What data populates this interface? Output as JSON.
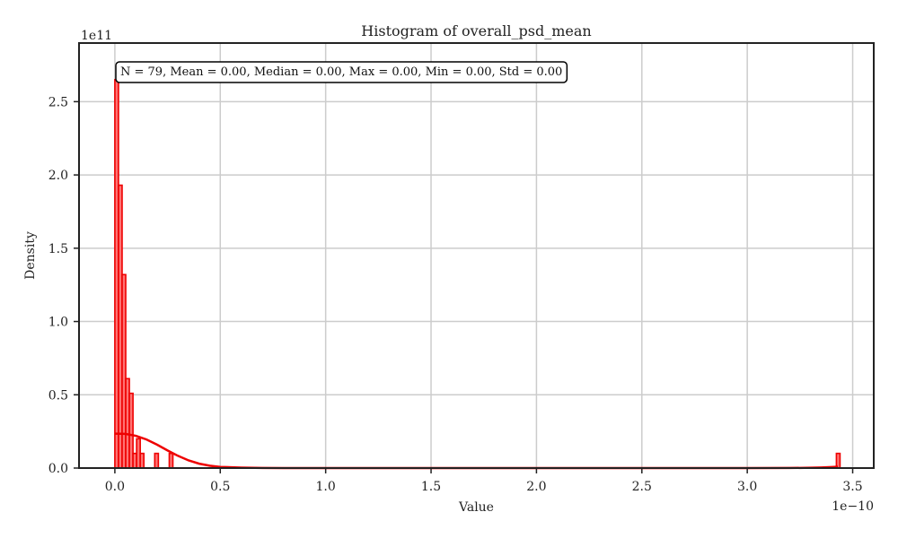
{
  "chart_data": {
    "type": "bar",
    "title": "Histogram of overall_psd_mean",
    "xlabel": "Value",
    "ylabel": "Density",
    "x_offset_label": "1e−10",
    "y_offset_label": "1e11",
    "xlim": [
      -0.17,
      3.6
    ],
    "ylim": [
      0,
      2.9
    ],
    "x_ticks": [
      {
        "value": 0.0,
        "label": "0.0"
      },
      {
        "value": 0.5,
        "label": "0.5"
      },
      {
        "value": 1.0,
        "label": "1.0"
      },
      {
        "value": 1.5,
        "label": "1.5"
      },
      {
        "value": 2.0,
        "label": "2.0"
      },
      {
        "value": 2.5,
        "label": "2.5"
      },
      {
        "value": 3.0,
        "label": "3.0"
      },
      {
        "value": 3.5,
        "label": "3.5"
      }
    ],
    "y_ticks": [
      {
        "value": 0.0,
        "label": "0.0"
      },
      {
        "value": 0.5,
        "label": "0.5"
      },
      {
        "value": 1.0,
        "label": "1.0"
      },
      {
        "value": 1.5,
        "label": "1.5"
      },
      {
        "value": 2.0,
        "label": "2.0"
      },
      {
        "value": 2.5,
        "label": "2.5"
      }
    ],
    "grid": true,
    "stats_box": "N = 79, Mean = 0.00, Median = 0.00, Max = 0.00, Min = 0.00, Std = 0.00",
    "bins": [
      {
        "x0": 0.0,
        "x1": 0.0172,
        "density": 2.65
      },
      {
        "x0": 0.0172,
        "x1": 0.0344,
        "density": 1.93
      },
      {
        "x0": 0.0344,
        "x1": 0.0516,
        "density": 1.32
      },
      {
        "x0": 0.0516,
        "x1": 0.0688,
        "density": 0.61
      },
      {
        "x0": 0.0688,
        "x1": 0.086,
        "density": 0.51
      },
      {
        "x0": 0.086,
        "x1": 0.1032,
        "density": 0.1
      },
      {
        "x0": 0.1032,
        "x1": 0.1204,
        "density": 0.2
      },
      {
        "x0": 0.1204,
        "x1": 0.1376,
        "density": 0.1
      },
      {
        "x0": 0.1892,
        "x1": 0.2064,
        "density": 0.1
      },
      {
        "x0": 0.258,
        "x1": 0.2752,
        "density": 0.1
      },
      {
        "x0": 3.4228,
        "x1": 3.44,
        "density": 0.1
      }
    ],
    "kde": {
      "x": [
        0.0,
        0.05,
        0.1,
        0.15,
        0.2,
        0.25,
        0.3,
        0.35,
        0.4,
        0.45,
        0.5,
        0.6,
        0.7,
        0.8,
        1.0,
        1.5,
        2.0,
        2.5,
        3.0,
        3.2,
        3.3,
        3.35,
        3.4,
        3.43
      ],
      "y": [
        0.235,
        0.233,
        0.22,
        0.195,
        0.16,
        0.12,
        0.083,
        0.052,
        0.03,
        0.016,
        0.008,
        0.003,
        0.001,
        0.0003,
        0.0,
        0.0,
        0.0,
        0.0,
        0.0,
        0.0005,
        0.002,
        0.004,
        0.007,
        0.009
      ]
    },
    "colors": {
      "bar_fill": "#ff7373",
      "bar_edge": "#ee0000",
      "kde": "#ee0000",
      "grid": "#cccccc",
      "axes": "#222222"
    }
  }
}
